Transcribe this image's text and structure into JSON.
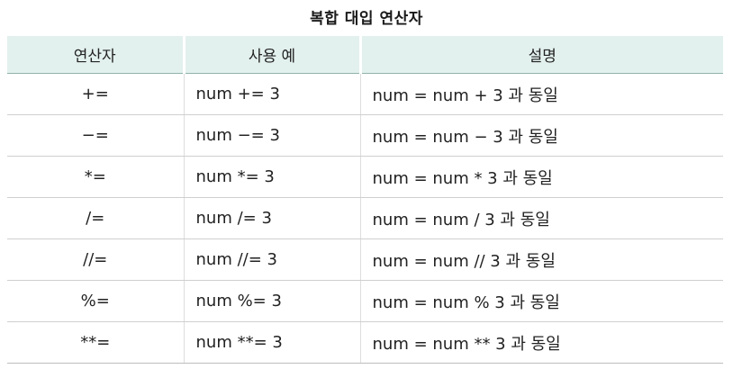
{
  "title": "복합 대입 연산자",
  "table": {
    "headers": [
      "연산자",
      "사용 예",
      "설명"
    ],
    "rows": [
      {
        "operator": "+=",
        "example": "num += 3",
        "description": "num = num + 3 과 동일"
      },
      {
        "operator": "−=",
        "example": "num −= 3",
        "description": "num = num − 3 과 동일"
      },
      {
        "operator": "*=",
        "example": "num *= 3",
        "description": "num = num * 3 과 동일"
      },
      {
        "operator": "/=",
        "example": "num /= 3",
        "description": "num = num / 3 과 동일"
      },
      {
        "operator": "//=",
        "example": "num //= 3",
        "description": "num = num // 3 과 동일"
      },
      {
        "operator": "%=",
        "example": "num %= 3",
        "description": "num = num % 3 과 동일"
      },
      {
        "operator": "**=",
        "example": "num **= 3",
        "description": "num = num ** 3 과 동일"
      }
    ]
  },
  "colors": {
    "header_bg": "#e3f1ee",
    "row_divider": "#cfcfcf",
    "text": "#222222"
  }
}
